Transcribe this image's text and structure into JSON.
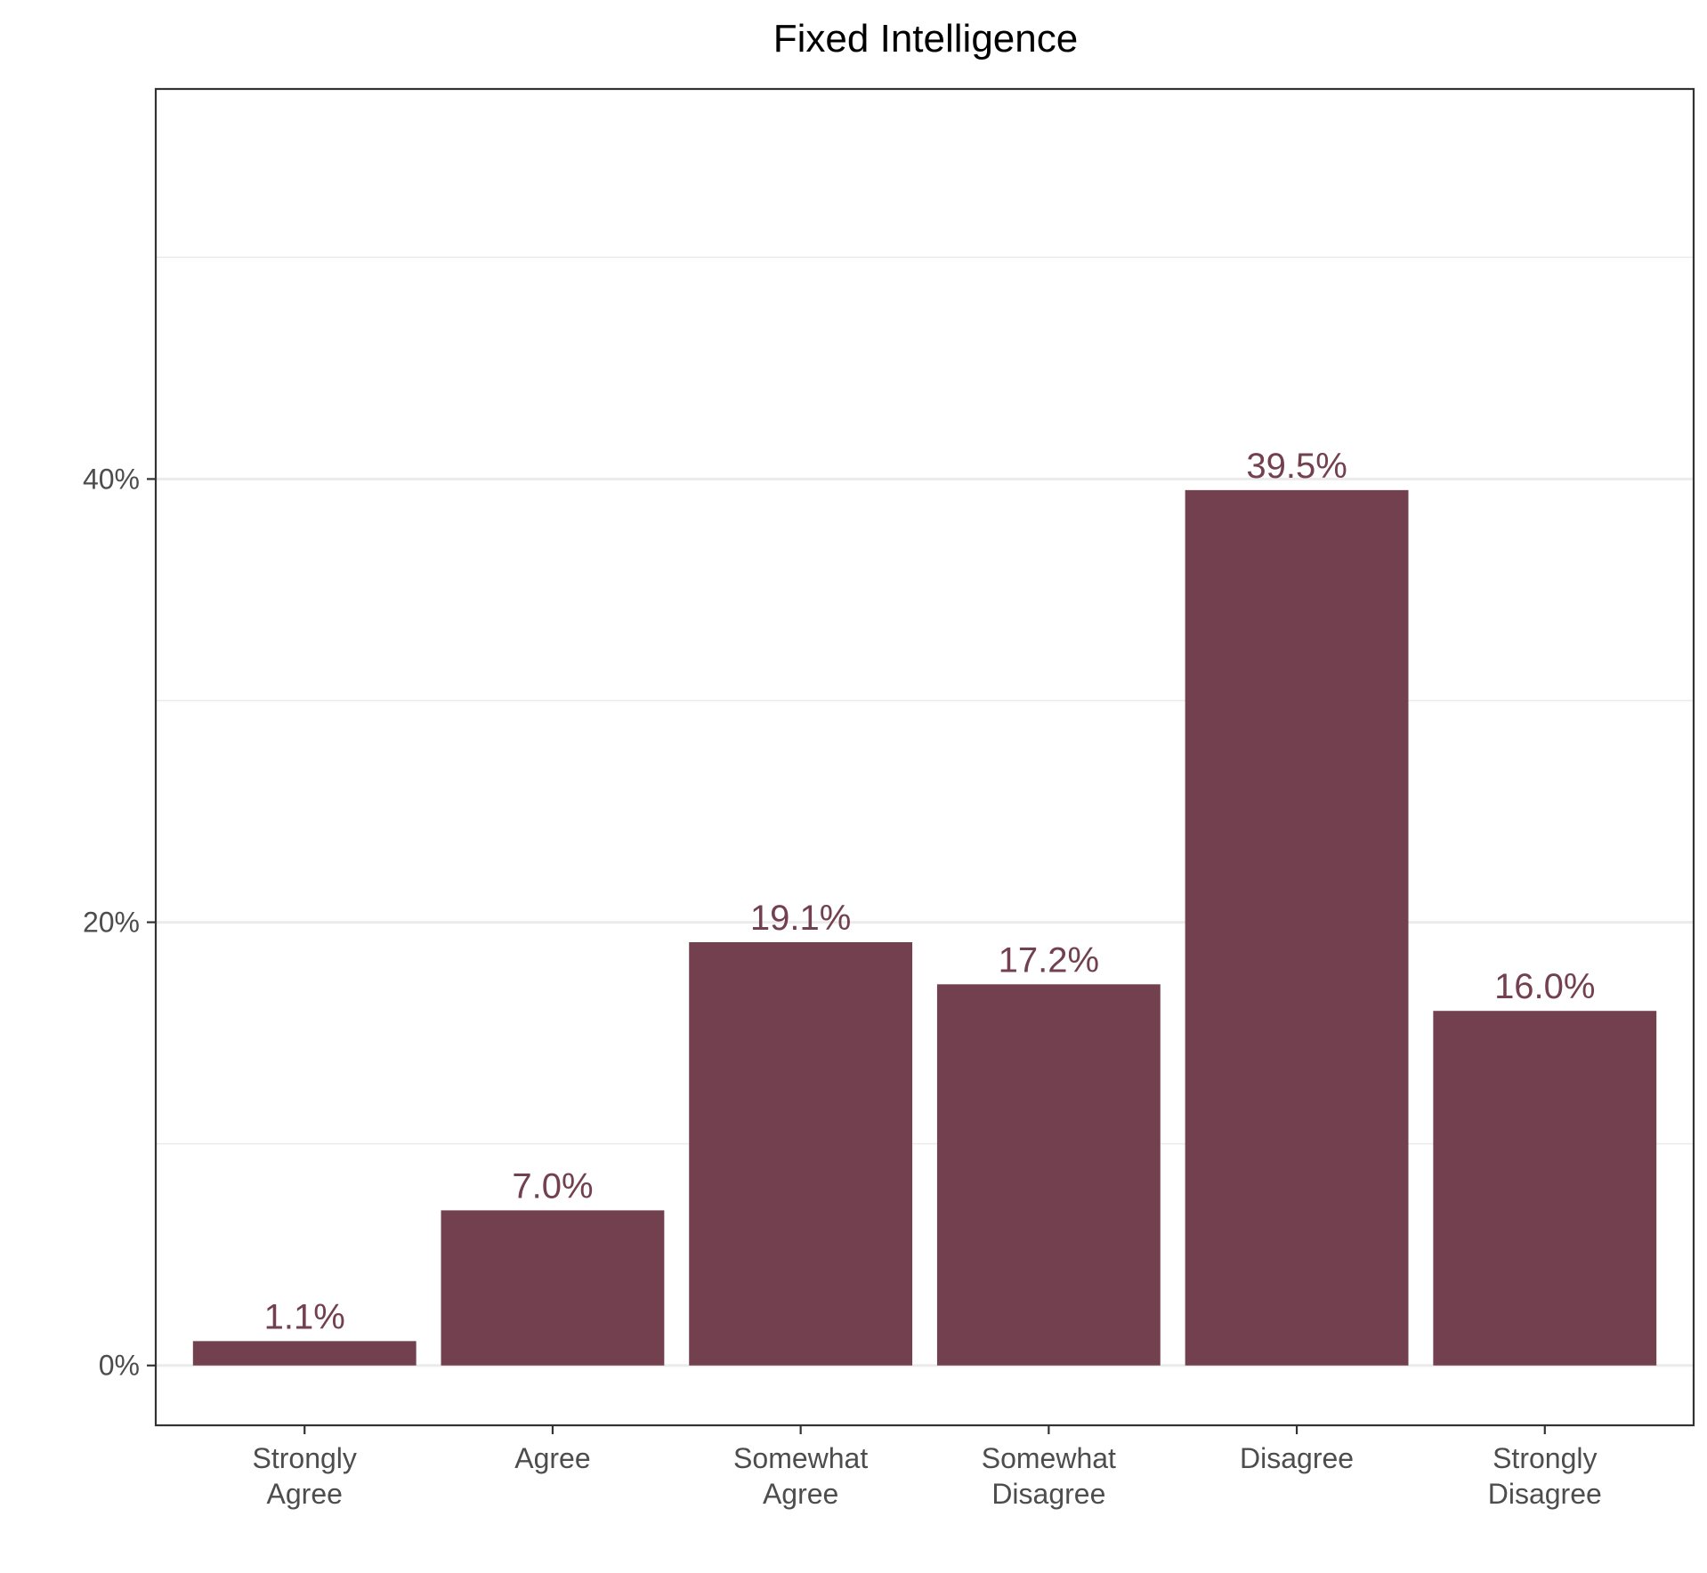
{
  "chart_data": {
    "type": "bar",
    "title": "Fixed Intelligence",
    "xlabel": "",
    "ylabel": "",
    "categories": [
      [
        "Strongly",
        "Agree"
      ],
      [
        "Agree"
      ],
      [
        "Somewhat",
        "Agree"
      ],
      [
        "Somewhat",
        "Disagree"
      ],
      [
        "Disagree"
      ],
      [
        "Strongly",
        "Disagree"
      ]
    ],
    "values": [
      1.1,
      7.0,
      19.1,
      17.2,
      39.5,
      16.0
    ],
    "value_labels": [
      "1.1%",
      "7.0%",
      "19.1%",
      "17.2%",
      "39.5%",
      "16.0%"
    ],
    "y_ticks": [
      0,
      20,
      40
    ],
    "y_tick_labels": [
      "0%",
      "20%",
      "40%"
    ],
    "y_minor_gridlines": [
      10,
      30,
      50
    ],
    "ylim": [
      -2.7,
      57.6
    ],
    "grid": true,
    "legend": "none",
    "bar_color": "#72404f",
    "label_color": "#72404f",
    "grid_color": "#ebebeb",
    "panel_border_color": "#333333"
  }
}
